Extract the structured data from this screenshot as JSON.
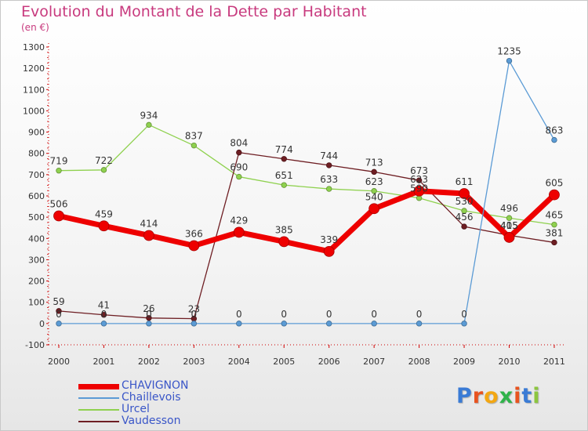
{
  "chart_data": {
    "type": "line",
    "title": "Evolution du Montant de la Dette par Habitant",
    "subtitle": "(en €)",
    "xlabel": "",
    "ylabel": "",
    "categories": [
      "2000",
      "2001",
      "2002",
      "2003",
      "2004",
      "2005",
      "2006",
      "2007",
      "2008",
      "2009",
      "2010",
      "2011"
    ],
    "ylim": [
      -100,
      1300
    ],
    "yticks": [
      -100,
      0,
      100,
      200,
      300,
      400,
      500,
      600,
      700,
      800,
      900,
      1000,
      1100,
      1200,
      1300
    ],
    "grid": false,
    "legend_position": "bottom-left",
    "series": [
      {
        "name": "CHAVIGNON",
        "color": "#ee0000",
        "values": [
          506,
          459,
          414,
          366,
          429,
          385,
          339,
          540,
          623,
          611,
          405,
          605
        ]
      },
      {
        "name": "Chaillevois",
        "color": "#5b9bd5",
        "values": [
          0,
          0,
          0,
          0,
          0,
          0,
          0,
          0,
          0,
          0,
          1235,
          863
        ]
      },
      {
        "name": "Urcel",
        "color": "#8fd14f",
        "values": [
          719,
          722,
          934,
          837,
          690,
          651,
          633,
          623,
          590,
          530,
          496,
          465
        ]
      },
      {
        "name": "Vaudesson",
        "color": "#6e1e23",
        "values": [
          59,
          41,
          26,
          23,
          804,
          774,
          744,
          713,
          673,
          456,
          415,
          381
        ]
      }
    ],
    "label_order": [
      "Urcel",
      "Vaudesson",
      "CHAVIGNON",
      "Chaillevois"
    ],
    "legend_items": [
      "CHAVIGNON",
      "Chaillevois",
      "Urcel",
      "Vaudesson"
    ]
  },
  "logo": {
    "text": "Proxiti",
    "colors": [
      "#3a7bd5",
      "#e8531f",
      "#f3a712",
      "#2fb34a",
      "#e8531f",
      "#3a7bd5",
      "#8cc63f"
    ]
  }
}
